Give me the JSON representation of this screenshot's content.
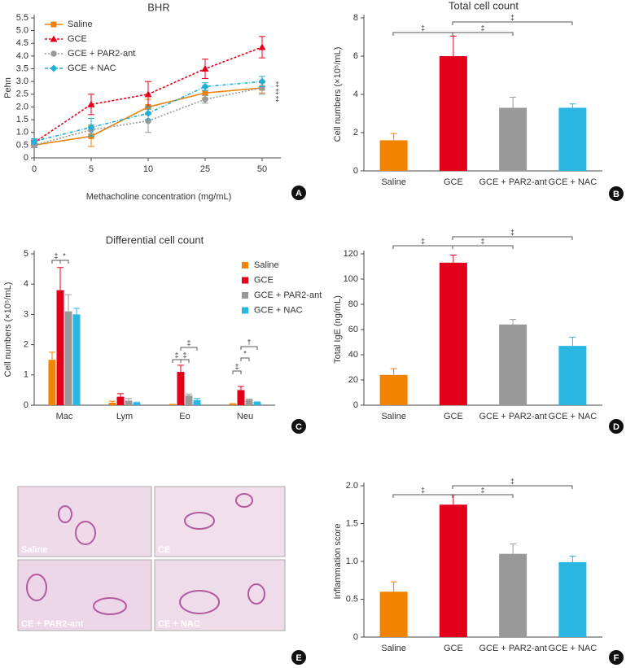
{
  "chart_data": [
    {
      "type": "line",
      "panel": "A",
      "title": "BHR",
      "x_label": "Methacholine concentration (mg/mL)",
      "y_label": "Pehn",
      "categories": [
        "0",
        "5",
        "10",
        "25",
        "50"
      ],
      "ylim": [
        0,
        5.5
      ],
      "yticks": [
        0,
        0.5,
        {
          "value": 1,
          "label": "1.0"
        },
        1.5,
        {
          "value": 2,
          "label": "2.0"
        },
        2.5,
        {
          "value": 3,
          "label": "3.0"
        },
        3.5,
        {
          "value": 4,
          "label": "4.0"
        },
        4.5,
        {
          "value": 5,
          "label": "5.0"
        },
        5.5
      ],
      "series": [
        {
          "name": "Saline",
          "color": "#e8820c",
          "values": [
            0.5,
            0.85,
            2.0,
            2.55,
            2.75
          ],
          "errors": [
            0.1,
            0.4,
            0.3,
            0.2,
            0.2
          ]
        },
        {
          "name": "GCE",
          "color": "#e2001a",
          "values": [
            0.6,
            2.1,
            2.5,
            3.5,
            4.35
          ],
          "errors": [
            0.1,
            0.4,
            0.5,
            0.38,
            0.42
          ]
        },
        {
          "name": "GCE + PAR2-ant",
          "color": "#999999",
          "values": [
            0.5,
            1.1,
            1.45,
            2.3,
            2.75
          ],
          "errors": [
            0.1,
            0.2,
            0.45,
            0.15,
            0.25
          ]
        },
        {
          "name": "GCE + NAC",
          "color": "#1fb0d8",
          "values": [
            0.65,
            1.2,
            1.75,
            2.8,
            3.0
          ],
          "errors": [
            0.1,
            0.35,
            0.25,
            0.15,
            0.2
          ]
        }
      ],
      "annotations": [
        "‡",
        "‡",
        "‡"
      ]
    },
    {
      "type": "bar",
      "panel": "B",
      "title": "Total cell count",
      "y_label": "Cell numbers (×10⁵/mL)",
      "categories": [
        "Saline",
        "GCE",
        "GCE + PAR2-ant",
        "GCE + NAC"
      ],
      "values": [
        1.6,
        6.0,
        3.3,
        3.3
      ],
      "errors": [
        0.35,
        1.05,
        0.55,
        0.2
      ],
      "colors": [
        "#f08300",
        "#e2001a",
        "#999999",
        "#29b6e0"
      ],
      "ylim": [
        0,
        8
      ],
      "yticks": [
        0,
        2,
        4,
        6,
        8
      ],
      "annotations": [
        "‡",
        "‡",
        "‡"
      ]
    },
    {
      "type": "bar",
      "panel": "C",
      "title": "Differential cell count",
      "y_label": "Cell numbers (×10⁵/mL)",
      "categories": [
        "Mac",
        "Lym",
        "Eo",
        "Neu"
      ],
      "series": [
        {
          "name": "Saline",
          "color": "#f08300",
          "values": [
            1.5,
            0.08,
            0.02,
            0.04
          ],
          "errors": [
            0.25,
            0.05,
            0.01,
            0.01
          ]
        },
        {
          "name": "GCE",
          "color": "#e2001a",
          "values": [
            3.8,
            0.28,
            1.1,
            0.5
          ],
          "errors": [
            0.75,
            0.1,
            0.22,
            0.12
          ]
        },
        {
          "name": "GCE + PAR2-ant",
          "color": "#999999",
          "values": [
            3.1,
            0.15,
            0.32,
            0.18
          ],
          "errors": [
            0.55,
            0.07,
            0.05,
            0.02
          ]
        },
        {
          "name": "GCE + NAC",
          "color": "#29b6e0",
          "values": [
            3.0,
            0.08,
            0.17,
            0.1
          ],
          "errors": [
            0.2,
            0.02,
            0.05,
            0.01
          ]
        }
      ],
      "ylim": [
        0,
        5
      ],
      "yticks": [
        0,
        1,
        2,
        3,
        4,
        5
      ],
      "annotations": [
        "‡",
        "*",
        "‡",
        "‡",
        "‡",
        "‡",
        "*",
        "†"
      ]
    },
    {
      "type": "bar",
      "panel": "D",
      "y_label": "Total IgE (ng/mL)",
      "categories": [
        "Saline",
        "GCE",
        "GCE + PAR2-ant",
        "GCE + NAC"
      ],
      "values": [
        24,
        113,
        64,
        47
      ],
      "errors": [
        5,
        6,
        4,
        7
      ],
      "colors": [
        "#f08300",
        "#e2001a",
        "#999999",
        "#29b6e0"
      ],
      "ylim": [
        0,
        120
      ],
      "yticks": [
        0,
        20,
        40,
        60,
        80,
        100,
        120
      ],
      "annotations": [
        "‡",
        "‡",
        "‡"
      ]
    },
    {
      "type": "bar",
      "panel": "F",
      "y_label": "Inflammation score",
      "categories": [
        "Saline",
        "GCE",
        "GCE + PAR2-ant",
        "GCE + NAC"
      ],
      "values": [
        0.6,
        1.75,
        1.1,
        0.99
      ],
      "errors": [
        0.13,
        0.13,
        0.13,
        0.08
      ],
      "colors": [
        "#f08300",
        "#e2001a",
        "#999999",
        "#29b6e0"
      ],
      "ylim": [
        0,
        2
      ],
      "yticks": [
        0,
        0.5,
        {
          "value": 1,
          "label": "1.0"
        },
        1.5,
        {
          "value": 2,
          "label": "2.0"
        }
      ],
      "annotations": [
        "‡",
        "‡",
        "‡"
      ]
    }
  ],
  "histology": {
    "panel": "E",
    "images": [
      "Saline",
      "CE",
      "CE + PAR2-ant",
      "CE + NAC"
    ]
  }
}
